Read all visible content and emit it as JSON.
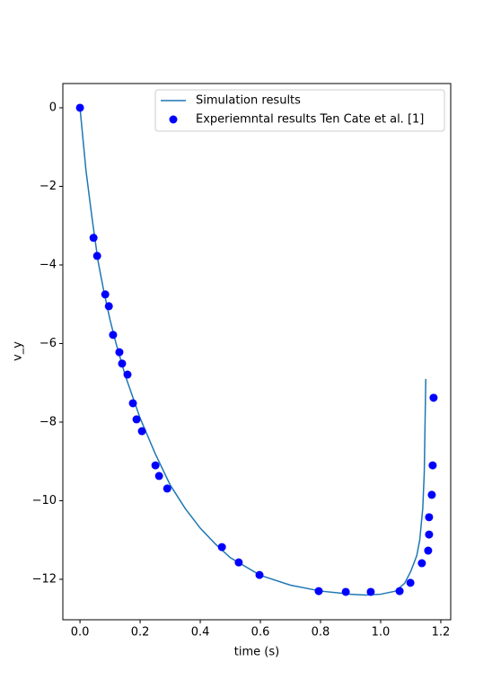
{
  "chart_data": {
    "type": "line",
    "xlabel": "time (s)",
    "ylabel": "v_y",
    "xlim": [
      -0.057,
      1.233
    ],
    "ylim": [
      -13.03,
      0.617
    ],
    "xticks": [
      {
        "value": 0,
        "label": "0.0"
      },
      0.2,
      0.4,
      0.6,
      0.8,
      {
        "value": 1,
        "label": "1.0"
      },
      1.2
    ],
    "yticks": [
      {
        "value": -12,
        "label": "−12"
      },
      {
        "value": -10,
        "label": "−10"
      },
      {
        "value": -8,
        "label": "−8"
      },
      {
        "value": -6,
        "label": "−6"
      },
      {
        "value": -4,
        "label": "−4"
      },
      {
        "value": -2,
        "label": "−2"
      },
      0
    ],
    "legend": "upper right",
    "series": [
      {
        "name": "Simulation results",
        "color": "#1f77b4",
        "style": "line",
        "x": [
          0,
          0.02,
          0.04,
          0.06,
          0.08,
          0.1,
          0.12,
          0.15,
          0.2,
          0.25,
          0.3,
          0.35,
          0.4,
          0.45,
          0.5,
          0.6,
          0.7,
          0.8,
          0.9,
          0.95,
          1.0,
          1.05,
          1.08,
          1.1,
          1.12,
          1.13,
          1.14,
          1.145,
          1.15
        ],
        "values": [
          0,
          -1.6,
          -2.8,
          -3.9,
          -4.7,
          -5.4,
          -6.0,
          -6.8,
          -7.9,
          -8.8,
          -9.6,
          -10.2,
          -10.7,
          -11.1,
          -11.45,
          -11.9,
          -12.15,
          -12.3,
          -12.38,
          -12.4,
          -12.38,
          -12.3,
          -12.1,
          -11.8,
          -11.4,
          -11.0,
          -10.2,
          -9.3,
          -6.9
        ]
      },
      {
        "name": "Experiemntal results Ten Cate et al. [1]",
        "color": "#0000ff",
        "style": "marker",
        "x": [
          0,
          0.045,
          0.057,
          0.084,
          0.096,
          0.11,
          0.131,
          0.14,
          0.158,
          0.176,
          0.188,
          0.206,
          0.251,
          0.263,
          0.29,
          0.472,
          0.528,
          0.597,
          0.794,
          0.884,
          0.967,
          1.063,
          1.099,
          1.137,
          1.158,
          1.161,
          1.161,
          1.17,
          1.173,
          1.176
        ],
        "values": [
          0,
          -3.31,
          -3.77,
          -4.75,
          -5.05,
          -5.78,
          -6.22,
          -6.51,
          -6.79,
          -7.52,
          -7.93,
          -8.23,
          -9.1,
          -9.37,
          -9.69,
          -11.18,
          -11.57,
          -11.89,
          -12.3,
          -12.32,
          -12.32,
          -12.3,
          -12.09,
          -11.59,
          -11.27,
          -10.86,
          -10.42,
          -9.85,
          -9.1,
          -7.38
        ]
      }
    ]
  }
}
